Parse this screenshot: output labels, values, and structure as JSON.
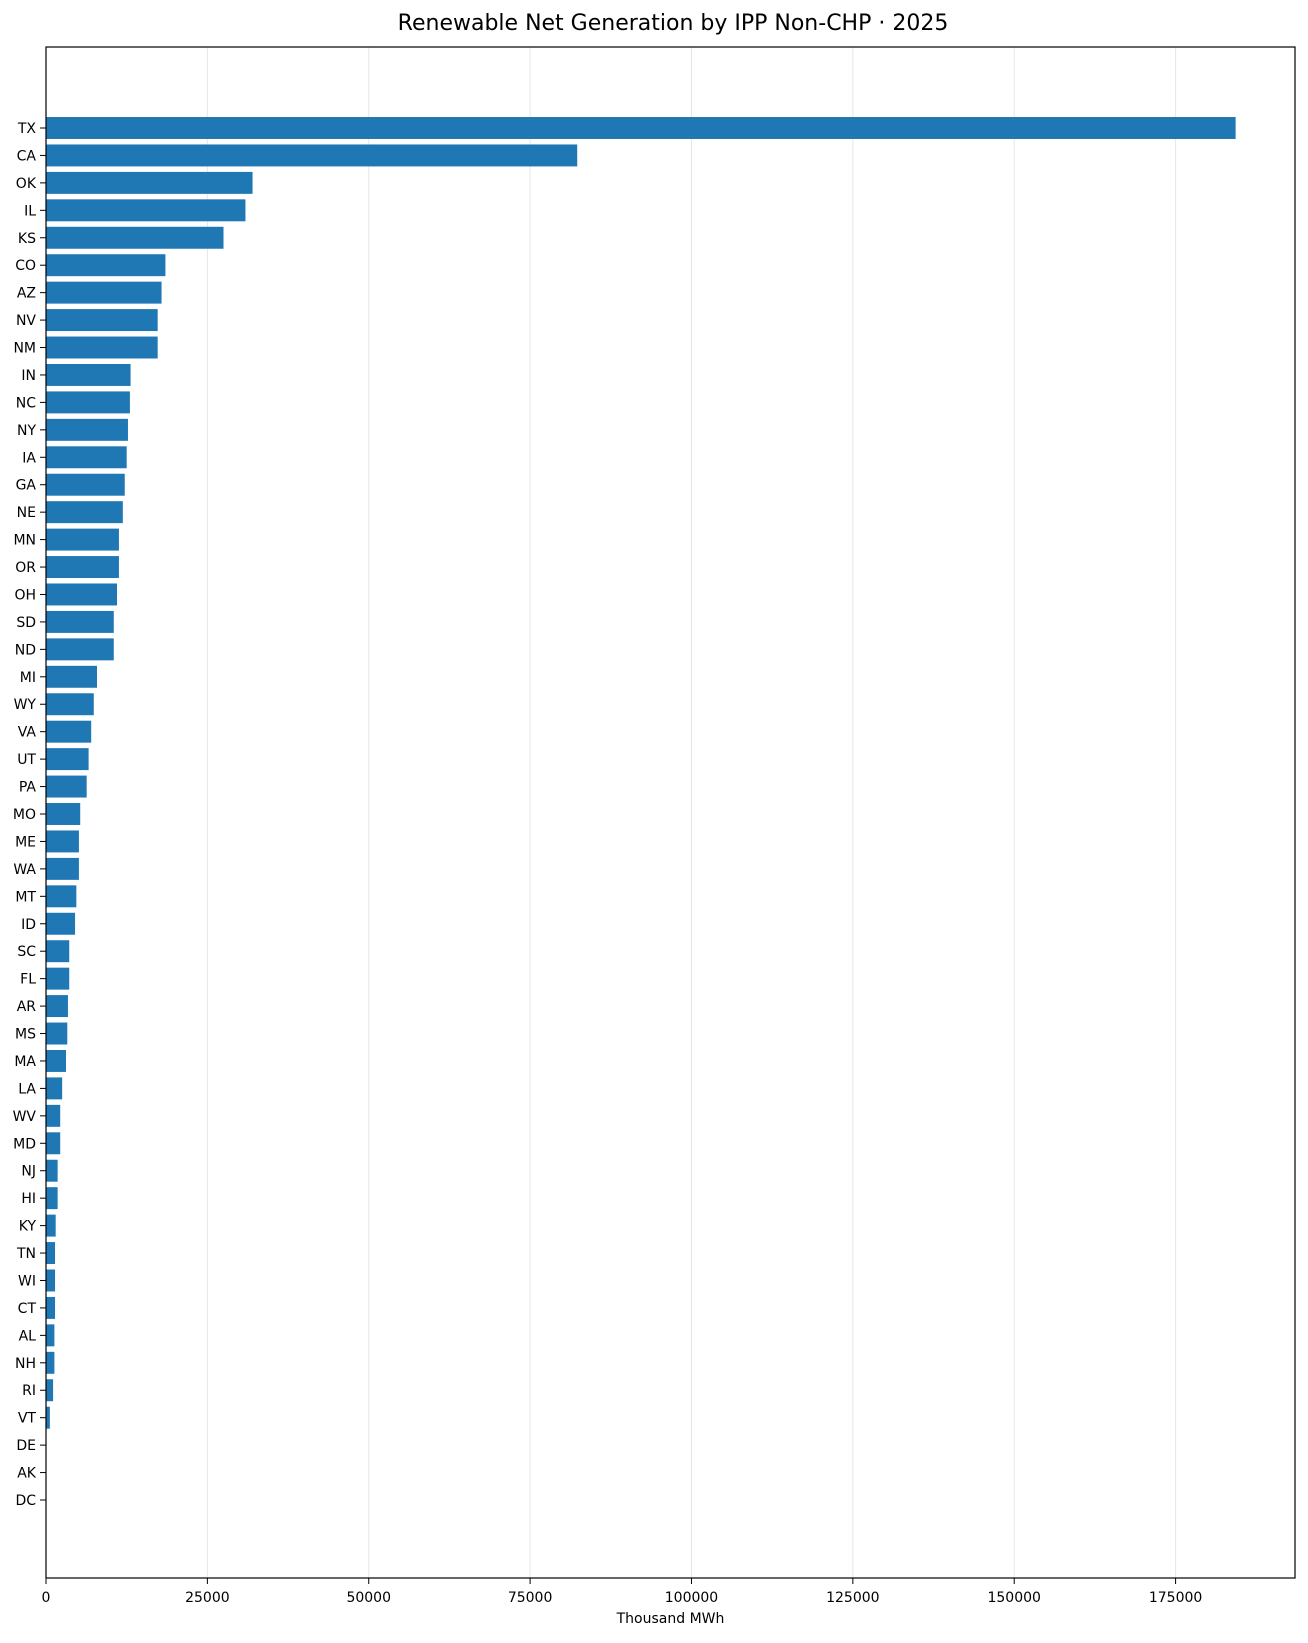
{
  "chart_data": {
    "type": "bar",
    "orientation": "horizontal",
    "title": "Renewable Net Generation by IPP Non-CHP · 2025",
    "xlabel": "Thousand MWh",
    "ylabel": "",
    "xlim": [
      0,
      193500
    ],
    "xticks": [
      0,
      25000,
      50000,
      75000,
      100000,
      125000,
      150000,
      175000
    ],
    "grid": "vertical",
    "bar_color": "#1f77b4",
    "categories": [
      "TX",
      "CA",
      "OK",
      "IL",
      "KS",
      "CO",
      "AZ",
      "NV",
      "NM",
      "IN",
      "NC",
      "NY",
      "IA",
      "GA",
      "NE",
      "MN",
      "OR",
      "OH",
      "SD",
      "ND",
      "MI",
      "WY",
      "VA",
      "UT",
      "PA",
      "MO",
      "ME",
      "WA",
      "MT",
      "ID",
      "SC",
      "FL",
      "AR",
      "MS",
      "MA",
      "LA",
      "WV",
      "MD",
      "NJ",
      "HI",
      "KY",
      "TN",
      "WI",
      "CT",
      "AL",
      "NH",
      "RI",
      "VT",
      "DE",
      "AK",
      "DC"
    ],
    "values": [
      184300,
      82300,
      32000,
      30900,
      27500,
      18500,
      17900,
      17300,
      17300,
      13100,
      13000,
      12700,
      12500,
      12200,
      11900,
      11300,
      11300,
      11000,
      10500,
      10500,
      7900,
      7400,
      7000,
      6600,
      6300,
      5300,
      5100,
      5100,
      4700,
      4500,
      3600,
      3600,
      3400,
      3300,
      3100,
      2500,
      2200,
      2200,
      1800,
      1800,
      1500,
      1400,
      1400,
      1400,
      1300,
      1300,
      1100,
      600,
      50,
      20,
      10
    ]
  }
}
